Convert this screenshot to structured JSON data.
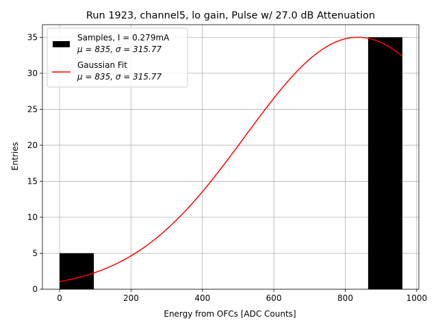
{
  "chart_data": {
    "type": "bar",
    "title": "Run 1923, channel5, lo gain, Pulse w/ 27.0 dB Attenuation",
    "xlabel": "Energy from OFCs [ADC Counts]",
    "ylabel": "Entries",
    "xlim": [
      -48,
      1006
    ],
    "ylim": [
      0,
      36.75
    ],
    "xticks": [
      0,
      200,
      400,
      600,
      800,
      1000
    ],
    "yticks": [
      0,
      5,
      10,
      15,
      20,
      25,
      30,
      35
    ],
    "grid": true,
    "legend_position": "top-left",
    "histogram": {
      "name": "Samples",
      "color": "#000000",
      "bins": [
        {
          "x0": 0,
          "x1": 96,
          "count": 5
        },
        {
          "x0": 96,
          "x1": 192,
          "count": 0
        },
        {
          "x0": 192,
          "x1": 288,
          "count": 0
        },
        {
          "x0": 288,
          "x1": 384,
          "count": 0
        },
        {
          "x0": 384,
          "x1": 480,
          "count": 0
        },
        {
          "x0": 480,
          "x1": 576,
          "count": 0
        },
        {
          "x0": 576,
          "x1": 672,
          "count": 0
        },
        {
          "x0": 672,
          "x1": 768,
          "count": 0
        },
        {
          "x0": 768,
          "x1": 864,
          "count": 0
        },
        {
          "x0": 864,
          "x1": 960,
          "count": 35
        }
      ]
    },
    "fit": {
      "name": "Gaussian Fit",
      "color": "#ff0000",
      "amplitude": 35,
      "mu": 835,
      "sigma": 315.77,
      "x_range": [
        0,
        960
      ]
    },
    "legend": [
      {
        "label_line1": "Samples, I = 0.279mA",
        "label_line2": "μ = 835, σ = 315.77"
      },
      {
        "label_line1": "Gaussian Fit",
        "label_line2": "μ = 835, σ = 315.77"
      }
    ]
  }
}
